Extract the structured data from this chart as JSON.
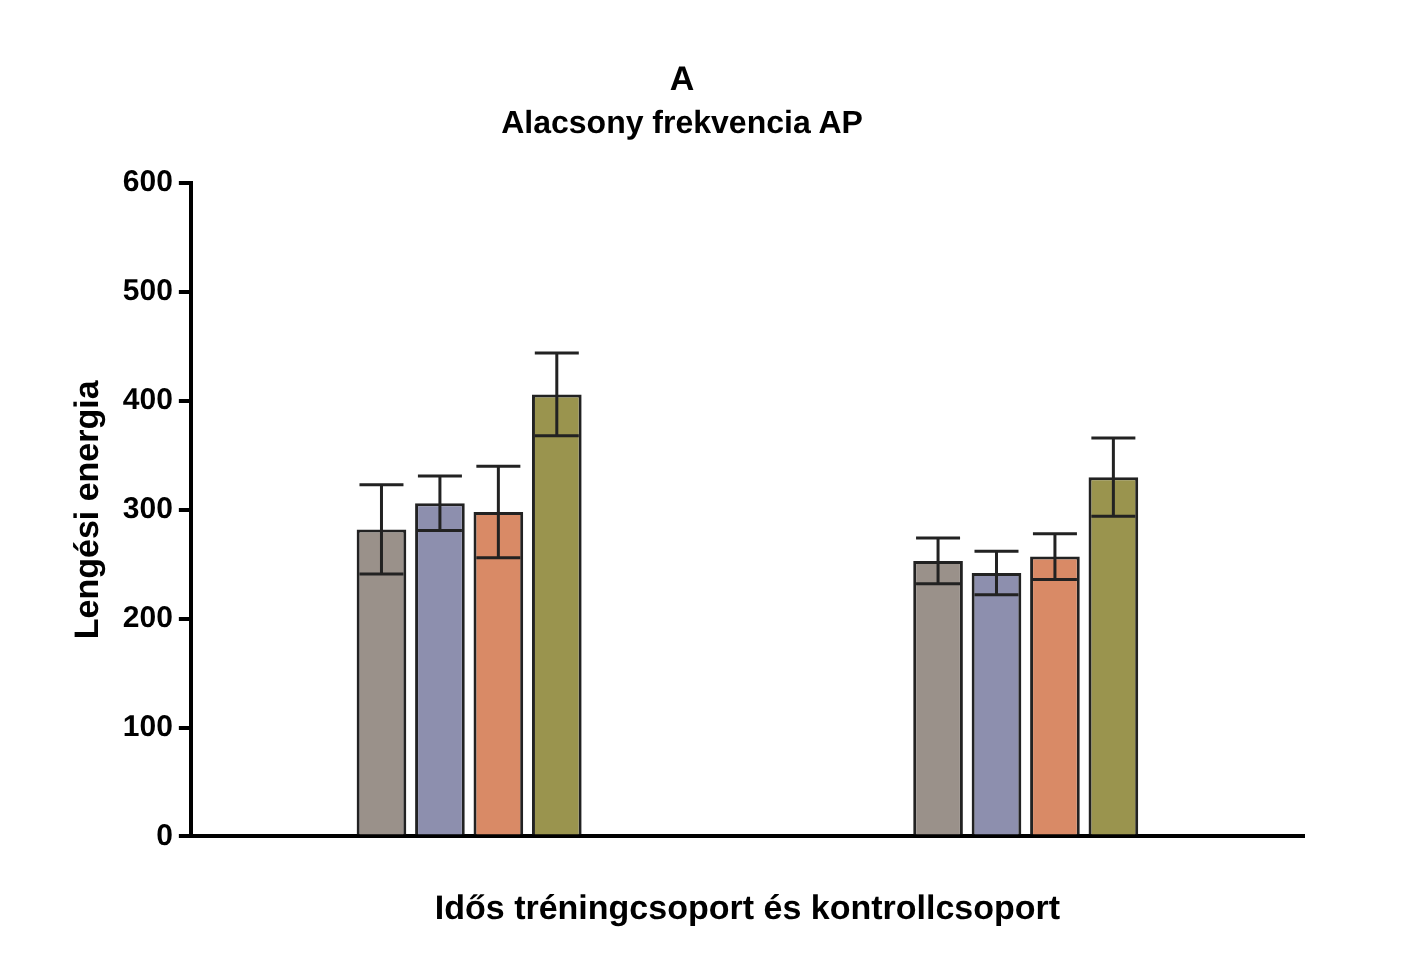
{
  "chart_data": {
    "type": "bar",
    "title": "A",
    "subtitle": "Alacsony frekvencia AP",
    "xlabel": "Idős tréningcsoport és kontrollcsoport",
    "ylabel": "Lengési energia",
    "categories": [
      null,
      null
    ],
    "series": [
      {
        "color": "#9a918a",
        "values": [
          282,
          253
        ],
        "errors": [
          41,
          21
        ]
      },
      {
        "color": "#8d8fae",
        "values": [
          306,
          242
        ],
        "errors": [
          25,
          20
        ]
      },
      {
        "color": "#d98a66",
        "values": [
          298,
          257
        ],
        "errors": [
          42,
          21
        ]
      },
      {
        "color": "#9a944e",
        "values": [
          406,
          330
        ],
        "errors": [
          38,
          36
        ]
      }
    ],
    "ylim": [
      0,
      600
    ],
    "yticks": [
      0,
      100,
      200,
      300,
      400,
      500,
      600
    ],
    "grid": false,
    "legend": false
  }
}
